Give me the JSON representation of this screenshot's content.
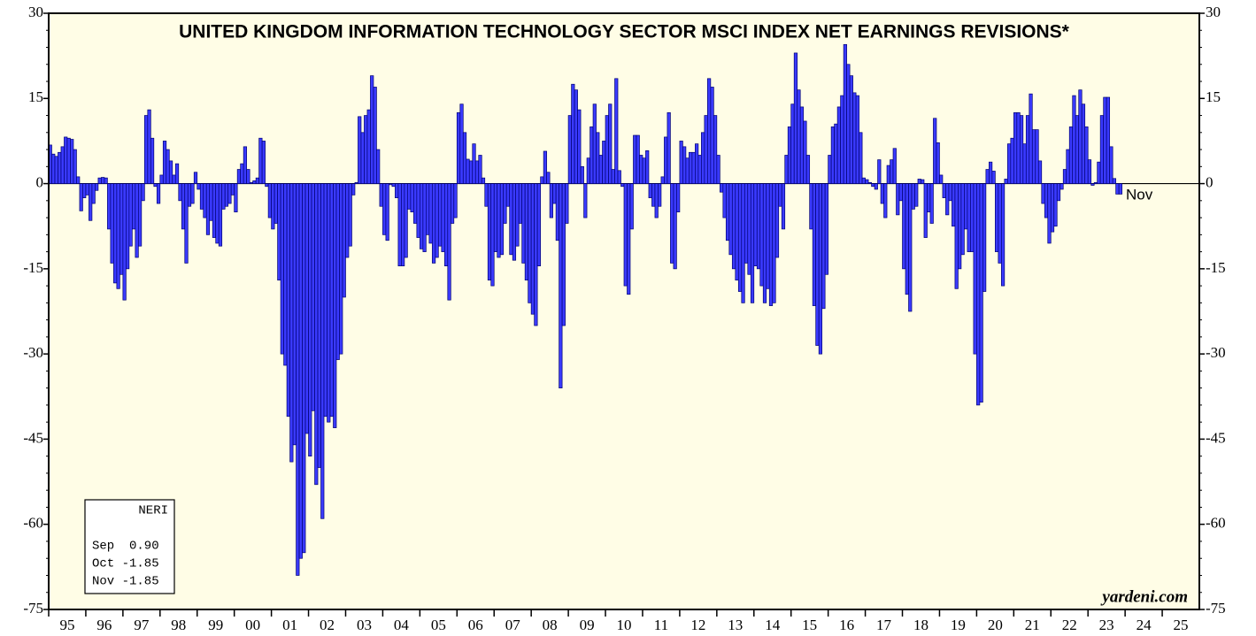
{
  "chart_data": {
    "type": "bar",
    "title": "UNITED KINGDOM INFORMATION TECHNOLOGY SECTOR MSCI INDEX NET EARNINGS REVISIONS*",
    "color": "#3a3aff",
    "values": [
      6.8,
      5.2,
      4.8,
      5.5,
      6.5,
      8.2,
      8,
      7.8,
      6,
      1.2,
      -4.8,
      -2.5,
      -2,
      -6.5,
      -3.5,
      -1.2,
      1,
      1.1,
      1,
      -8,
      -14,
      -17.5,
      -18.5,
      -16,
      -20.5,
      -15,
      -11,
      -8,
      -13,
      -11,
      -3,
      12,
      13,
      8,
      -0.5,
      -3.5,
      1.5,
      7.5,
      6,
      4,
      1.5,
      3.5,
      -3,
      -8,
      -14,
      -4,
      -3.5,
      2,
      -1,
      -4.5,
      -6,
      -9,
      -6.5,
      -9.5,
      -10.5,
      -11,
      -4.5,
      -4,
      -3.5,
      -2,
      -5,
      2.5,
      3.5,
      6.5,
      2.5,
      0.2,
      0.5,
      1,
      8,
      7.5,
      -0.5,
      -6,
      -8,
      -7,
      -17,
      -30,
      -32,
      -41,
      -49,
      -46,
      -69,
      -66,
      -65,
      -44,
      -48,
      -40,
      -53,
      -50,
      -59,
      -41,
      -42,
      -41,
      -43,
      -31,
      -30,
      -20,
      -13,
      -11,
      -2,
      0.2,
      11.8,
      9,
      12,
      13,
      19,
      17,
      6,
      -4,
      -9,
      -10,
      -0.2,
      -0.5,
      -2.5,
      -14.5,
      -14.5,
      -13,
      -4.5,
      -5,
      -7,
      -9.5,
      -11.5,
      -12,
      -9,
      -10.5,
      -14,
      -13,
      -11,
      -12,
      -14.5,
      -20.5,
      -7,
      -6,
      12.5,
      14,
      9,
      4.3,
      4,
      7,
      4,
      5,
      1,
      -4,
      -17,
      -18,
      -12,
      -13,
      -12.5,
      -7,
      -4,
      -12.5,
      -13.5,
      -11,
      -7,
      -14,
      -17,
      -21,
      -23,
      -25,
      -14.5,
      1.2,
      5.7,
      2,
      -6,
      -3.5,
      -10,
      -36,
      -25,
      -7,
      12,
      17.5,
      16.5,
      13,
      3,
      -6,
      4.5,
      10,
      14,
      9,
      5,
      7.5,
      12,
      14,
      2.5,
      18.5,
      2.3,
      -0.5,
      -18,
      -19.5,
      -8,
      8.5,
      8.5,
      5,
      4.5,
      5.8,
      -2.5,
      -4,
      -6,
      -4,
      1.2,
      8.2,
      12.5,
      -14,
      -15,
      -5,
      7.5,
      6.5,
      4.5,
      5.5,
      5.5,
      7,
      5,
      9,
      12,
      18.5,
      17,
      12,
      5,
      -1.5,
      -6,
      -10,
      -12.5,
      -15,
      -17,
      -19,
      -21,
      -14,
      -16,
      -21,
      -14.5,
      -15,
      -18,
      -21,
      -18.5,
      -21.5,
      -21,
      -13,
      -4,
      -8,
      5,
      10,
      14,
      23,
      16.5,
      13.5,
      11,
      5,
      -8,
      -21.5,
      -28.5,
      -30,
      -22,
      -16,
      5,
      10,
      10.5,
      13.5,
      15.5,
      24.5,
      21,
      19,
      16,
      15.5,
      9,
      1,
      0.7,
      0.2,
      -0.5,
      -1,
      4.2,
      -3.5,
      -6,
      3.2,
      4.2,
      6.2,
      -5.5,
      -3,
      -15,
      -19.5,
      -22.5,
      -4.5,
      -4,
      0.8,
      0.7,
      -9.5,
      -5,
      -7,
      11.5,
      7.2,
      1.5,
      -2.5,
      -5.5,
      -3,
      -7.5,
      -18.5,
      -15,
      -12.5,
      -8,
      -12,
      -12,
      -30,
      -39,
      -38.5,
      -19,
      2.5,
      3.8,
      2.2,
      -12,
      -14,
      -18,
      0.8,
      7,
      8,
      12.5,
      12.5,
      12,
      7,
      12,
      15.8,
      9.5,
      9.5,
      4,
      -3.5,
      -6,
      -10.5,
      -8.5,
      -7.5,
      -3,
      -1,
      2.5,
      6,
      10,
      15.5,
      12,
      16.5,
      14,
      10,
      4.2,
      -0.3,
      0.2,
      3.8,
      12,
      15.2,
      15.2,
      6.5,
      0.9,
      -1.85,
      -1.85
    ],
    "xlim": [
      1995,
      2026
    ],
    "xticks": [
      {
        "value": 1995,
        "label": "95"
      },
      {
        "value": 1996,
        "label": "96"
      },
      {
        "value": 1997,
        "label": "97"
      },
      {
        "value": 1998,
        "label": "98"
      },
      {
        "value": 1999,
        "label": "99"
      },
      {
        "value": 2000,
        "label": "00"
      },
      {
        "value": 2001,
        "label": "01"
      },
      {
        "value": 2002,
        "label": "02"
      },
      {
        "value": 2003,
        "label": "03"
      },
      {
        "value": 2004,
        "label": "04"
      },
      {
        "value": 2005,
        "label": "05"
      },
      {
        "value": 2006,
        "label": "06"
      },
      {
        "value": 2007,
        "label": "07"
      },
      {
        "value": 2008,
        "label": "08"
      },
      {
        "value": 2009,
        "label": "09"
      },
      {
        "value": 2010,
        "label": "10"
      },
      {
        "value": 2011,
        "label": "11"
      },
      {
        "value": 2012,
        "label": "12"
      },
      {
        "value": 2013,
        "label": "13"
      },
      {
        "value": 2014,
        "label": "14"
      },
      {
        "value": 2015,
        "label": "15"
      },
      {
        "value": 2016,
        "label": "16"
      },
      {
        "value": 2017,
        "label": "17"
      },
      {
        "value": 2018,
        "label": "18"
      },
      {
        "value": 2019,
        "label": "19"
      },
      {
        "value": 2020,
        "label": "20"
      },
      {
        "value": 2021,
        "label": "21"
      },
      {
        "value": 2022,
        "label": "22"
      },
      {
        "value": 2023,
        "label": "23"
      },
      {
        "value": 2024,
        "label": "24"
      },
      {
        "value": 2025,
        "label": "25"
      }
    ],
    "ylim": [
      -75,
      30
    ],
    "yticks": [
      -75,
      -60,
      -45,
      -30,
      -15,
      0,
      15,
      30
    ],
    "annotation": "Nov",
    "source": "yardeni.com",
    "legend_box": {
      "title": "NERI",
      "rows": [
        "Sep  0.90",
        "Oct -1.85",
        "Nov -1.85"
      ]
    }
  }
}
